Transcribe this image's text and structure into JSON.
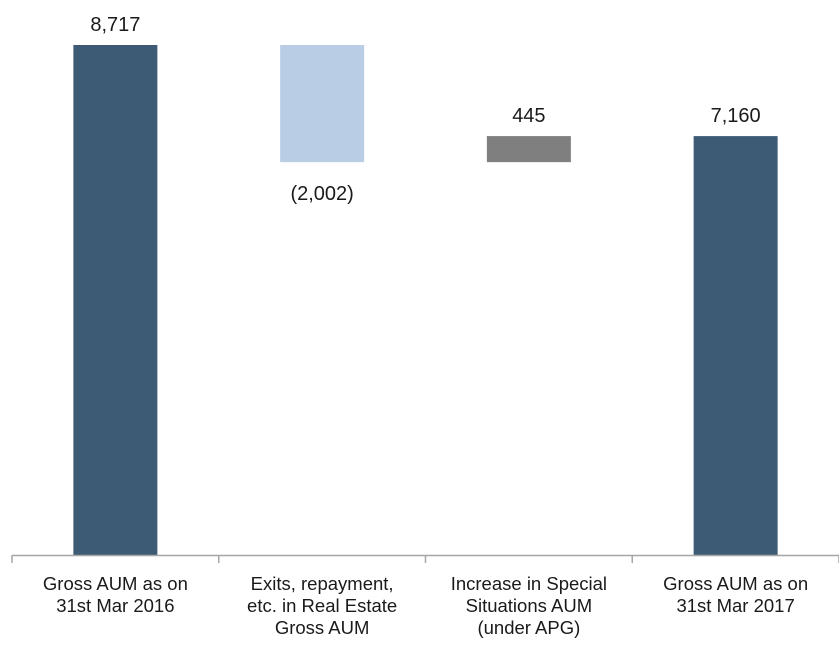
{
  "chart_data": {
    "type": "bar",
    "subtype": "waterfall",
    "categories": [
      [
        "Gross AUM as on",
        "31st Mar 2016"
      ],
      [
        "Exits, repayment,",
        "etc. in Real Estate",
        "Gross AUM"
      ],
      [
        "Increase in Special",
        "Situations AUM",
        "(under APG)"
      ],
      [
        "Gross AUM as on",
        "31st Mar 2017"
      ]
    ],
    "values": [
      8717,
      -2002,
      445,
      7160
    ],
    "bar_kinds": [
      "total",
      "delta",
      "delta",
      "total"
    ],
    "data_labels": [
      "8,717",
      "(2,002)",
      "445",
      "7,160"
    ],
    "ylim": [
      0,
      8717
    ],
    "grid": false,
    "legend": "none",
    "colors": {
      "total": "#3e5b75",
      "decrease": "#b9cde5",
      "increase": "#7f7f7f",
      "axis": "#a6a6a6",
      "text": "#1a1a1a"
    }
  }
}
